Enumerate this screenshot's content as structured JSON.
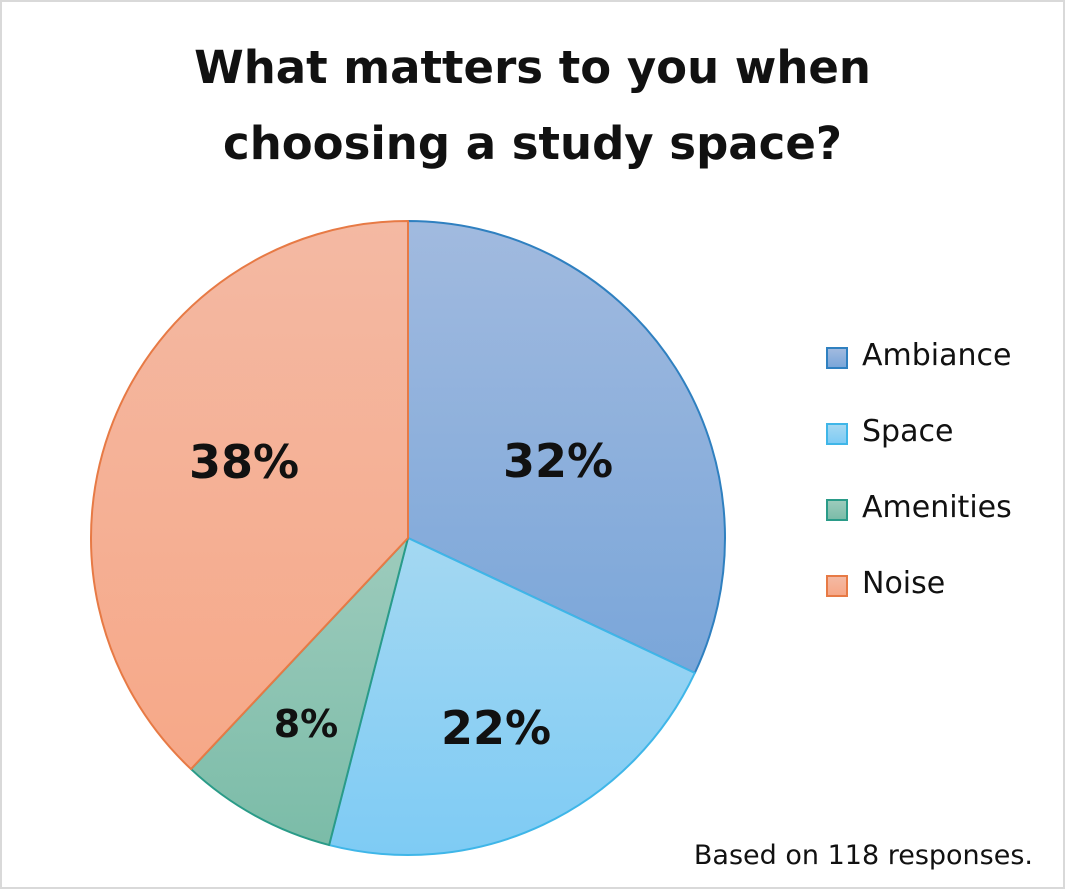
{
  "title": {
    "line1": "What matters to you when",
    "line2": "choosing a study space?"
  },
  "chart_data": {
    "type": "pie",
    "title": "What matters to you when choosing a study space?",
    "categories": [
      "Ambiance",
      "Space",
      "Amenities",
      "Noise"
    ],
    "values": [
      32,
      22,
      8,
      38
    ],
    "labels": [
      "32%",
      "22%",
      "8%",
      "38%"
    ],
    "unit": "%",
    "start_angle": "12 o'clock",
    "direction": "clockwise",
    "legend": "right",
    "colors": {
      "Ambiance": {
        "fill_top": "#a1badf",
        "fill_bottom": "#7aa6d9",
        "stroke": "#2f80c0"
      },
      "Space": {
        "fill_top": "#a4d8f2",
        "fill_bottom": "#7ecbf4",
        "stroke": "#3fb6e8"
      },
      "Amenities": {
        "fill_top": "#9dcbbc",
        "fill_bottom": "#7bbca8",
        "stroke": "#2a9b88"
      },
      "Noise": {
        "fill_top": "#f4b9a3",
        "fill_bottom": "#f6a888",
        "stroke": "#e77a45"
      }
    }
  },
  "footnote": "Based on 118 responses."
}
